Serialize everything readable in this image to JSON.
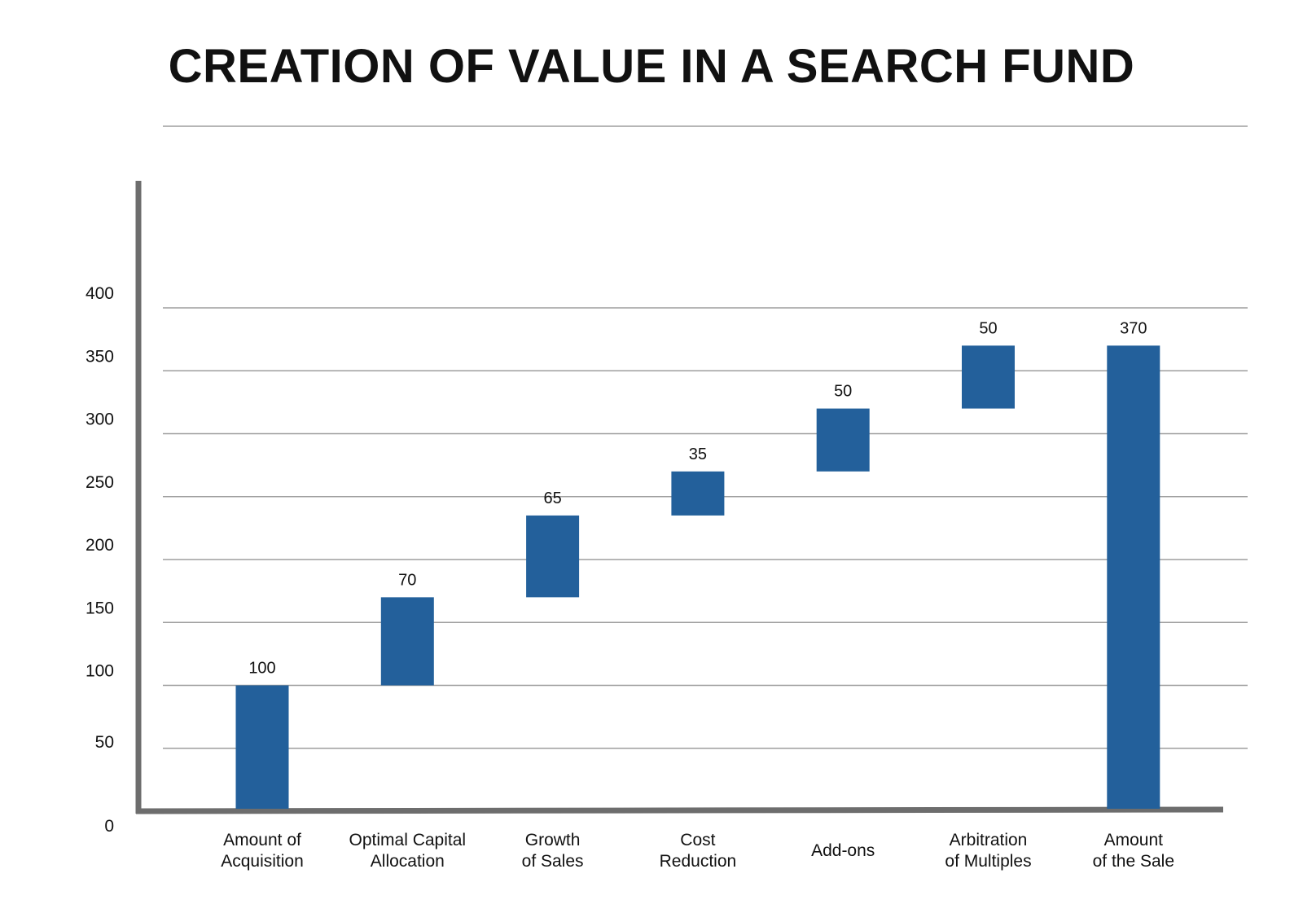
{
  "chart_data": {
    "type": "bar",
    "subtype": "waterfall",
    "title": "CREATION OF VALUE IN A SEARCH FUND",
    "xlabel": "",
    "ylabel": "",
    "ylim": [
      0,
      400
    ],
    "yticks": [
      0,
      50,
      100,
      150,
      200,
      250,
      300,
      350,
      400
    ],
    "grid": true,
    "legend": "none",
    "bar_color": "#23609b",
    "categories": [
      [
        "Amount of",
        "Acquisition"
      ],
      [
        "Optimal Capital",
        "Allocation"
      ],
      [
        "Growth",
        "of Sales"
      ],
      [
        "Cost",
        "Reduction"
      ],
      [
        "Add-ons"
      ],
      [
        "Arbitration",
        "of Multiples"
      ],
      [
        "Amount",
        "of the Sale"
      ]
    ],
    "bars": [
      {
        "base": 0,
        "top": 100,
        "label": "100"
      },
      {
        "base": 100,
        "top": 170,
        "label": "70"
      },
      {
        "base": 170,
        "top": 235,
        "label": "65"
      },
      {
        "base": 235,
        "top": 270,
        "label": "35"
      },
      {
        "base": 270,
        "top": 320,
        "label": "50"
      },
      {
        "base": 320,
        "top": 370,
        "label": "50"
      },
      {
        "base": 0,
        "top": 370,
        "label": "370"
      }
    ]
  }
}
